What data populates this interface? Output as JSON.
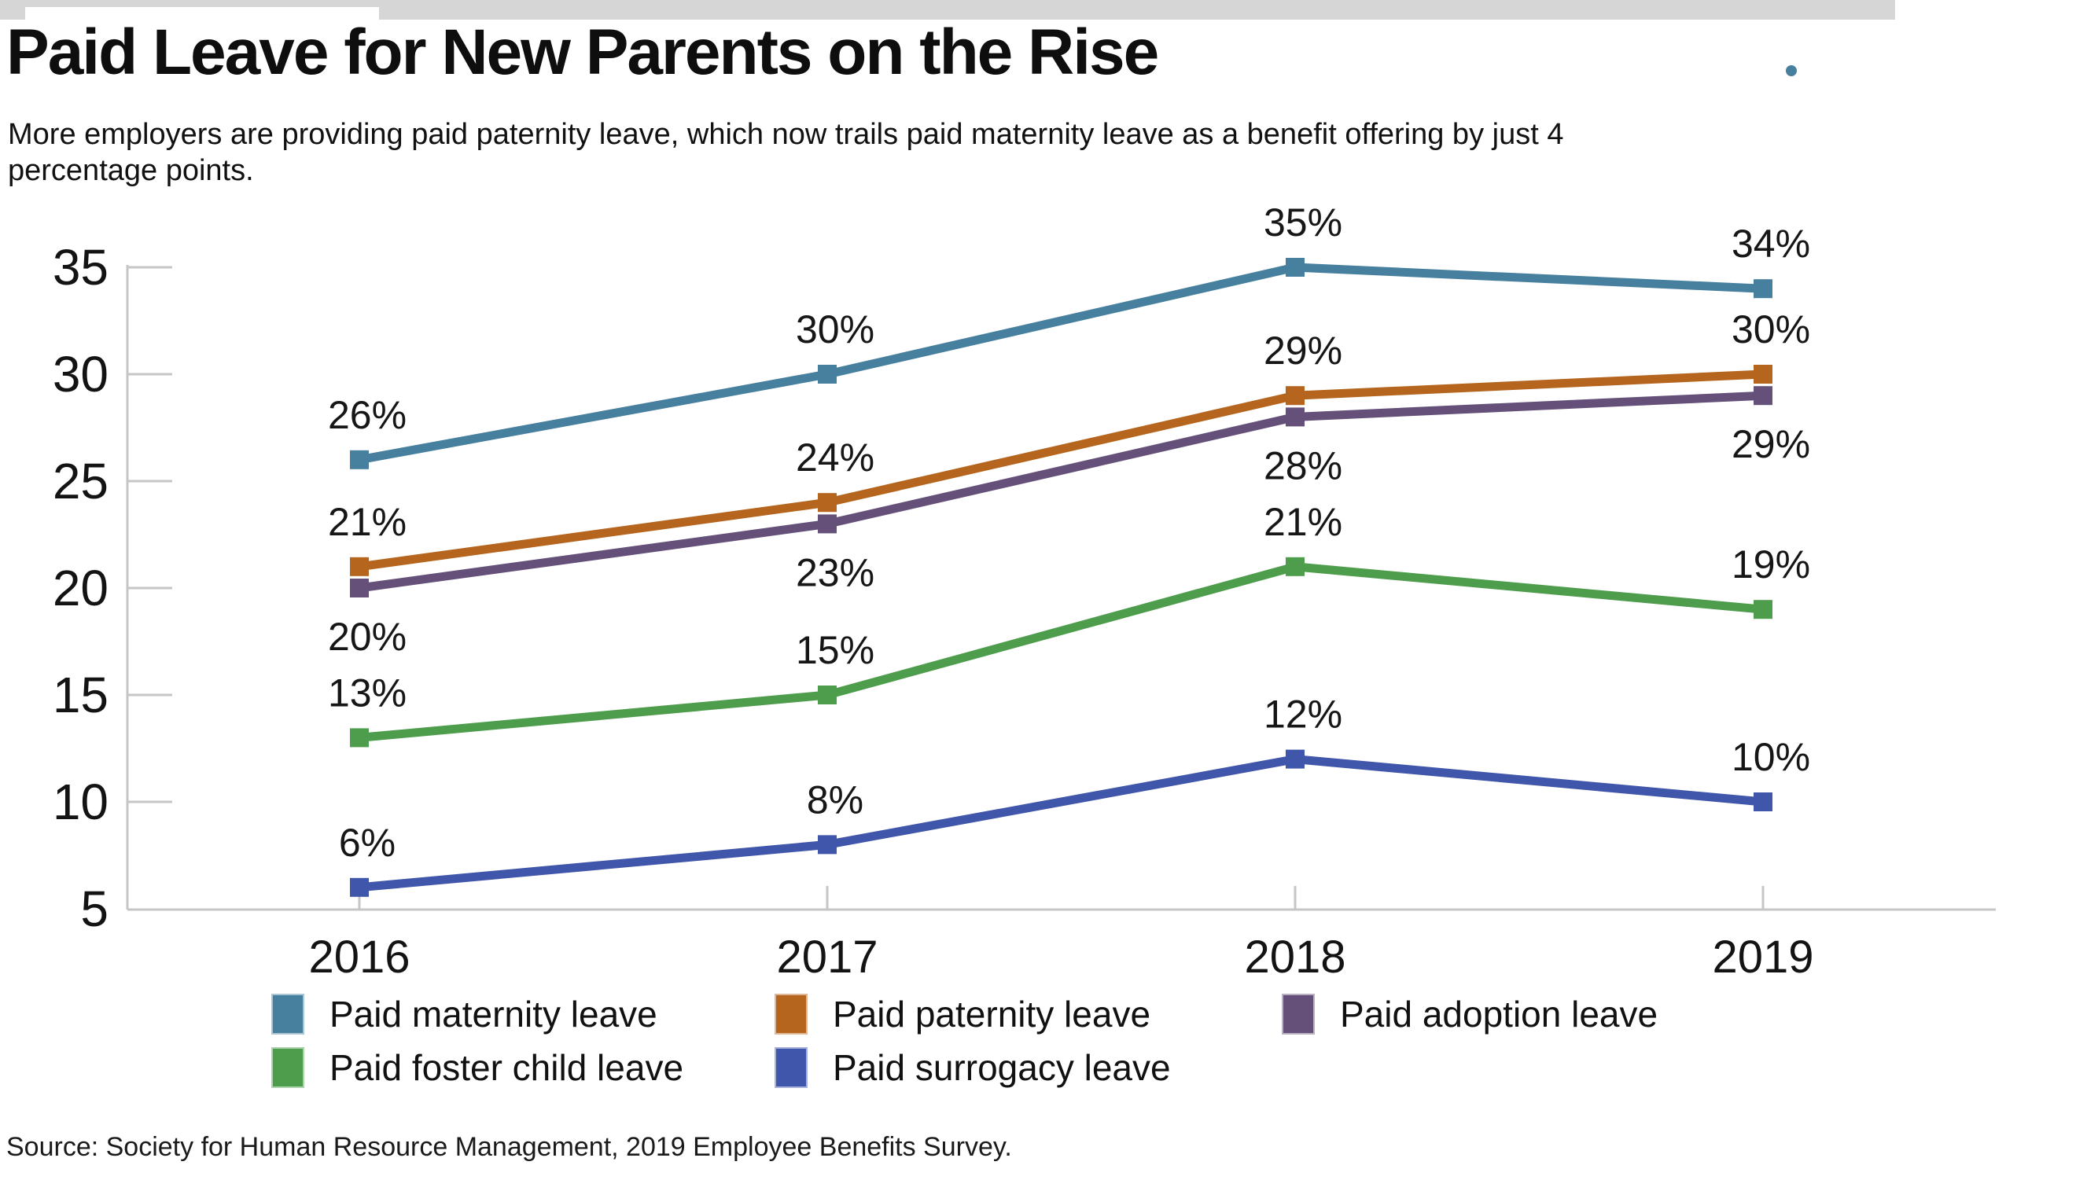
{
  "page": {
    "title": "Paid Leave for New Parents on the Rise",
    "subtitle_lines": [
      "More employers are providing paid paternity leave, which now trails paid maternity leave as a benefit offering by just 4",
      "percentage points."
    ],
    "source_note": "Source: Society for Human Resource Management, 2019 Employee Benefits Survey."
  },
  "decor": {
    "accent_dot_color": "#47809e"
  },
  "chart_data": {
    "type": "line",
    "x": [
      "2016",
      "2017",
      "2018",
      "2019"
    ],
    "series": [
      {
        "name": "Paid maternity leave",
        "color": "#47809e",
        "values": [
          26,
          30,
          35,
          34
        ],
        "label_position": "above"
      },
      {
        "name": "Paid paternity leave",
        "color": "#b5651d",
        "values": [
          21,
          24,
          29,
          30
        ],
        "label_position": "above"
      },
      {
        "name": "Paid adoption leave",
        "color": "#645079",
        "values": [
          20,
          23,
          28,
          29
        ],
        "label_position": "below"
      },
      {
        "name": "Paid foster child leave",
        "color": "#4e9d4d",
        "values": [
          13,
          15,
          21,
          19
        ],
        "label_position": "above"
      },
      {
        "name": "Paid surrogacy leave",
        "color": "#4056aa",
        "values": [
          6,
          8,
          12,
          10
        ],
        "label_position": "above"
      }
    ],
    "value_suffix": "%",
    "ylim": [
      5,
      35
    ],
    "yticks": [
      5,
      10,
      15,
      20,
      25,
      30,
      35
    ],
    "grid": false,
    "data_labels": true,
    "legend_position": "bottom",
    "axis_color": "#c6c6c6"
  }
}
